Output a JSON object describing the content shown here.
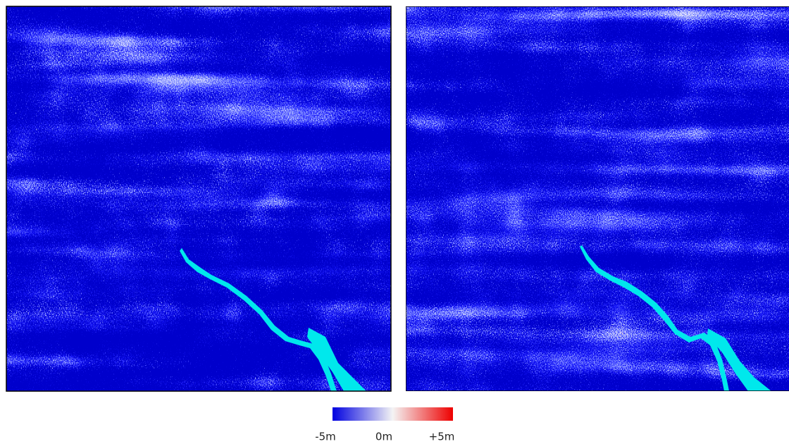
{
  "colorbar": {
    "labels": [
      "-5m",
      "0m",
      "+5m"
    ]
  }
}
